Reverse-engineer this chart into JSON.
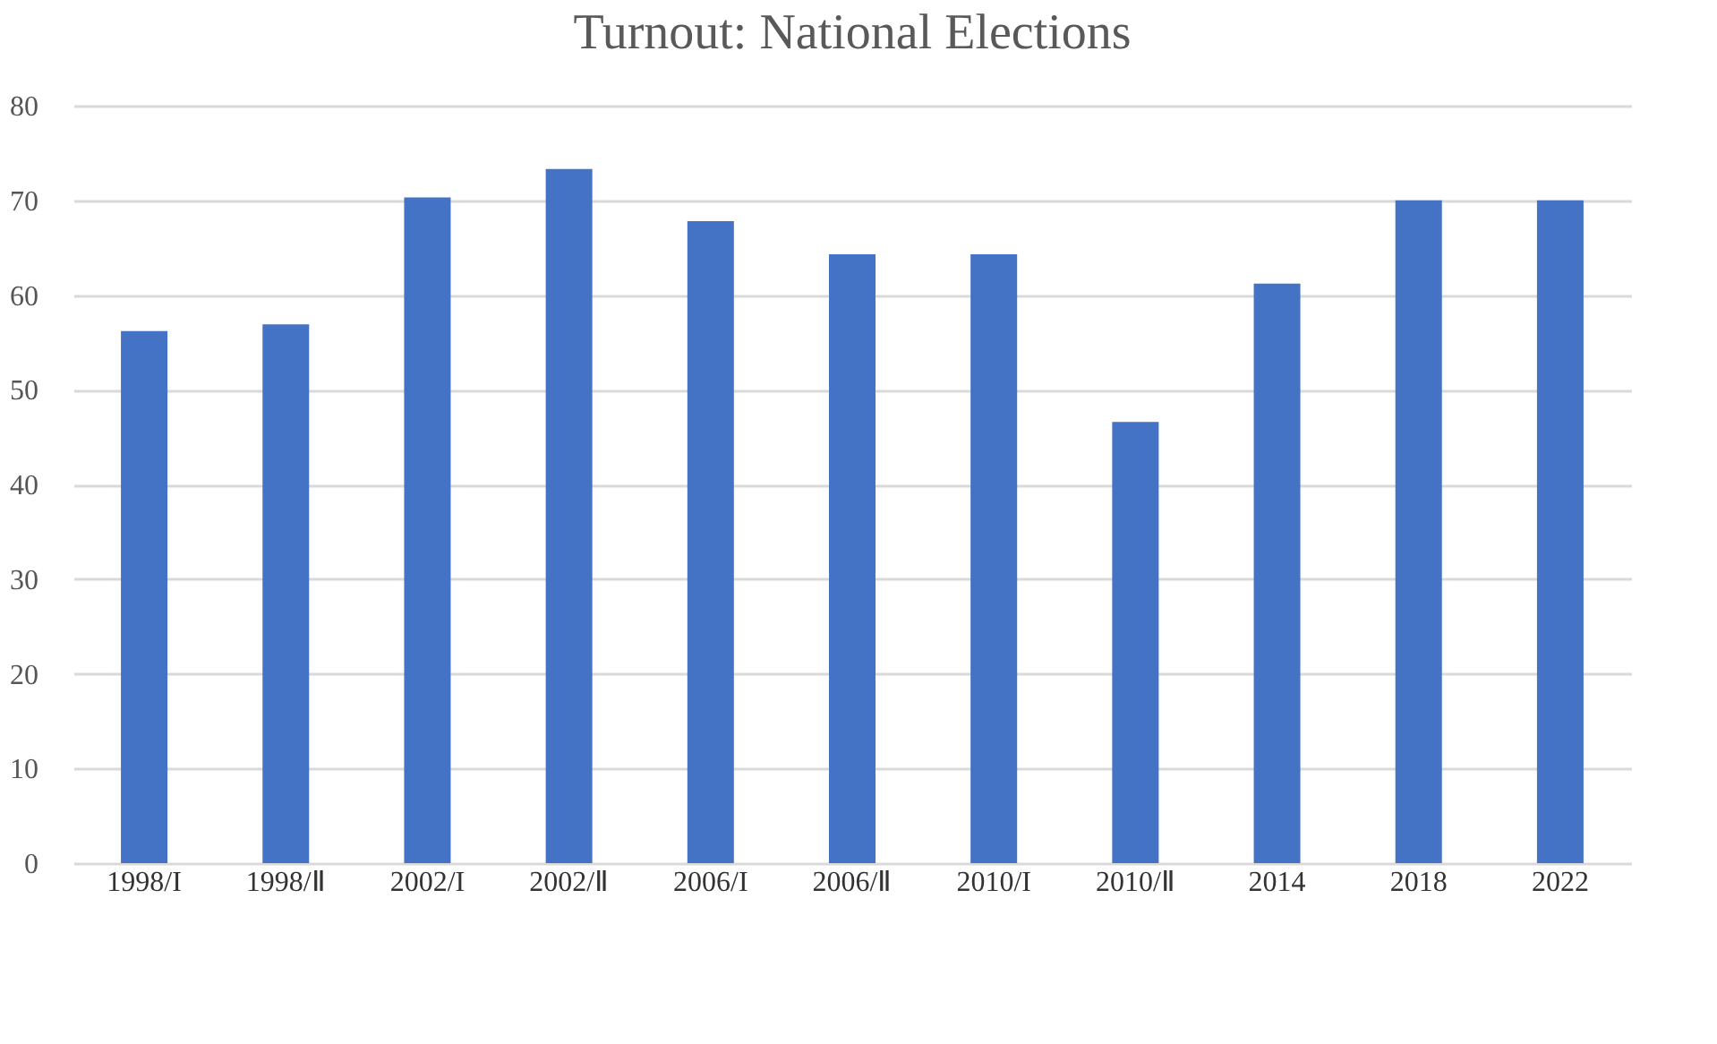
{
  "chart_data": {
    "type": "bar",
    "title": "Turnout: National Elections",
    "categories": [
      "1998/I",
      "1998/Ⅱ",
      "2002/I",
      "2002/Ⅱ",
      "2006/I",
      "2006/Ⅱ",
      "2010/I",
      "2010/Ⅱ",
      "2014",
      "2018",
      "2022"
    ],
    "values": [
      56.2,
      56.9,
      70.3,
      73.3,
      67.8,
      64.3,
      64.3,
      46.6,
      61.2,
      70.0,
      70.0
    ],
    "color": "#4472c4",
    "ylim": [
      0,
      80
    ],
    "yticks": [
      0,
      10,
      20,
      30,
      40,
      50,
      60,
      70,
      80
    ],
    "grid": "y"
  }
}
